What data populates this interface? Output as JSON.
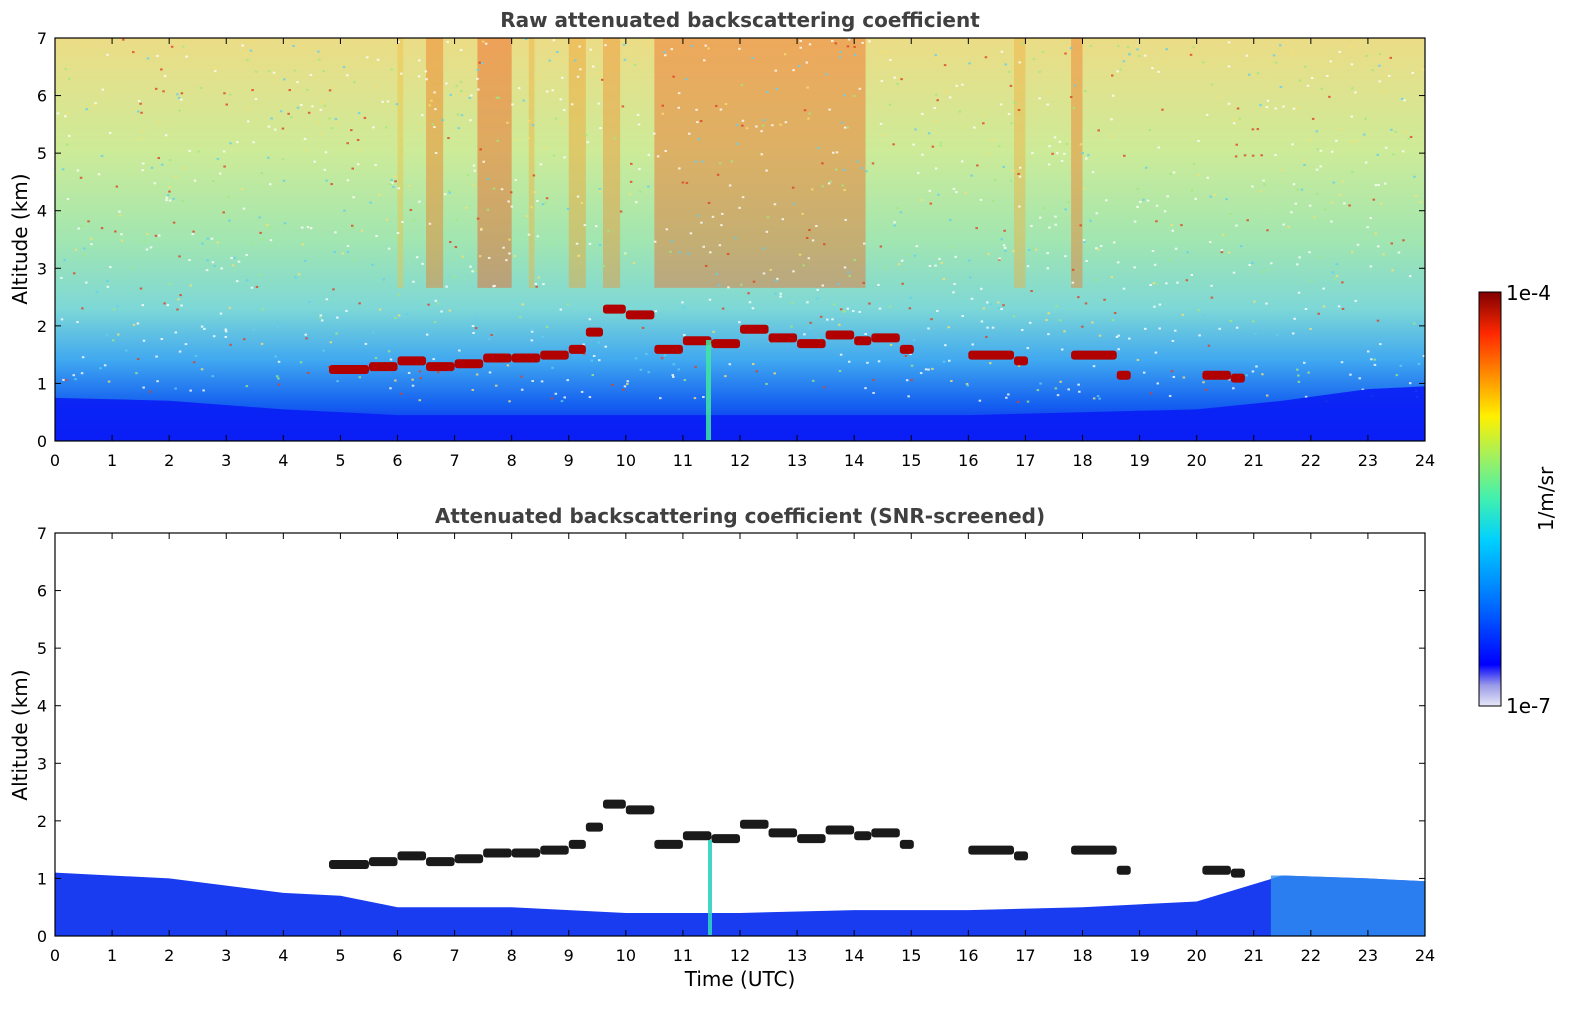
{
  "chart_data": [
    {
      "type": "heatmap",
      "title": "Raw attenuated backscattering coefficient",
      "xlabel": "",
      "ylabel": "Altitude (km)",
      "xlim": [
        0,
        24
      ],
      "ylim": [
        0,
        7
      ],
      "xticks": [
        "0",
        "1",
        "2",
        "3",
        "4",
        "5",
        "6",
        "7",
        "8",
        "9",
        "10",
        "11",
        "12",
        "13",
        "14",
        "15",
        "16",
        "17",
        "18",
        "19",
        "20",
        "21",
        "22",
        "23",
        "24"
      ],
      "yticks": [
        "0",
        "1",
        "2",
        "3",
        "4",
        "5",
        "6",
        "7"
      ],
      "color_scale": "log",
      "cloud_layer_altitude_km": [
        [
          4.8,
          1.25
        ],
        [
          5.5,
          1.3
        ],
        [
          6.0,
          1.4
        ],
        [
          6.5,
          1.3
        ],
        [
          7.0,
          1.35
        ],
        [
          7.5,
          1.45
        ],
        [
          8.0,
          1.45
        ],
        [
          8.5,
          1.5
        ],
        [
          9.0,
          1.6
        ],
        [
          9.3,
          1.9
        ],
        [
          9.6,
          2.3
        ],
        [
          10.0,
          2.2
        ],
        [
          10.5,
          1.6
        ],
        [
          11.0,
          1.75
        ],
        [
          11.5,
          1.7
        ],
        [
          12.0,
          1.95
        ],
        [
          12.5,
          1.8
        ],
        [
          13.0,
          1.7
        ],
        [
          13.5,
          1.85
        ],
        [
          14.0,
          1.75
        ],
        [
          14.3,
          1.8
        ],
        [
          14.8,
          1.6
        ],
        [
          16.0,
          1.5
        ],
        [
          16.8,
          1.4
        ],
        [
          17.8,
          1.5
        ],
        [
          18.6,
          1.15
        ],
        [
          20.1,
          1.15
        ],
        [
          20.6,
          1.1
        ]
      ],
      "boundary_layer_top_km": [
        [
          0,
          0.75
        ],
        [
          2,
          0.7
        ],
        [
          4,
          0.55
        ],
        [
          6,
          0.45
        ],
        [
          8,
          0.45
        ],
        [
          10,
          0.45
        ],
        [
          12,
          0.45
        ],
        [
          14,
          0.45
        ],
        [
          16,
          0.45
        ],
        [
          18,
          0.5
        ],
        [
          20,
          0.55
        ],
        [
          21.5,
          0.7
        ],
        [
          23,
          0.9
        ],
        [
          24,
          0.95
        ]
      ]
    },
    {
      "type": "heatmap",
      "title": "Attenuated backscattering coefficient (SNR-screened)",
      "xlabel": "Time (UTC)",
      "ylabel": "Altitude (km)",
      "xlim": [
        0,
        24
      ],
      "ylim": [
        0,
        7
      ],
      "xticks": [
        "0",
        "1",
        "2",
        "3",
        "4",
        "5",
        "6",
        "7",
        "8",
        "9",
        "10",
        "11",
        "12",
        "13",
        "14",
        "15",
        "16",
        "17",
        "18",
        "19",
        "20",
        "21",
        "22",
        "23",
        "24"
      ],
      "yticks": [
        "0",
        "1",
        "2",
        "3",
        "4",
        "5",
        "6",
        "7"
      ],
      "color_scale": "log",
      "screened_signal_top_km": [
        [
          0,
          1.1
        ],
        [
          2,
          1.0
        ],
        [
          4,
          0.75
        ],
        [
          5,
          0.7
        ],
        [
          6,
          0.5
        ],
        [
          8,
          0.5
        ],
        [
          9,
          0.45
        ],
        [
          10,
          0.4
        ],
        [
          12,
          0.4
        ],
        [
          14,
          0.45
        ],
        [
          16,
          0.45
        ],
        [
          18,
          0.5
        ],
        [
          20,
          0.6
        ],
        [
          21.5,
          1.05
        ],
        [
          23,
          1.0
        ],
        [
          24,
          0.95
        ]
      ]
    }
  ],
  "colorbar": {
    "label": "1/m/sr",
    "max_label": "1e-4",
    "min_label": "1e-7",
    "colors": [
      "#e8e8f8",
      "#c4c4ee",
      "#9a9ae8",
      "#6a6ae8",
      "#0000ff",
      "#0030ff",
      "#0060ff",
      "#0090ff",
      "#00b8ff",
      "#00dcf0",
      "#20e8c8",
      "#60f090",
      "#a0f060",
      "#d8f030",
      "#fff000",
      "#ffc000",
      "#ff8c00",
      "#ff5000",
      "#f01800",
      "#c00000",
      "#800000"
    ]
  }
}
